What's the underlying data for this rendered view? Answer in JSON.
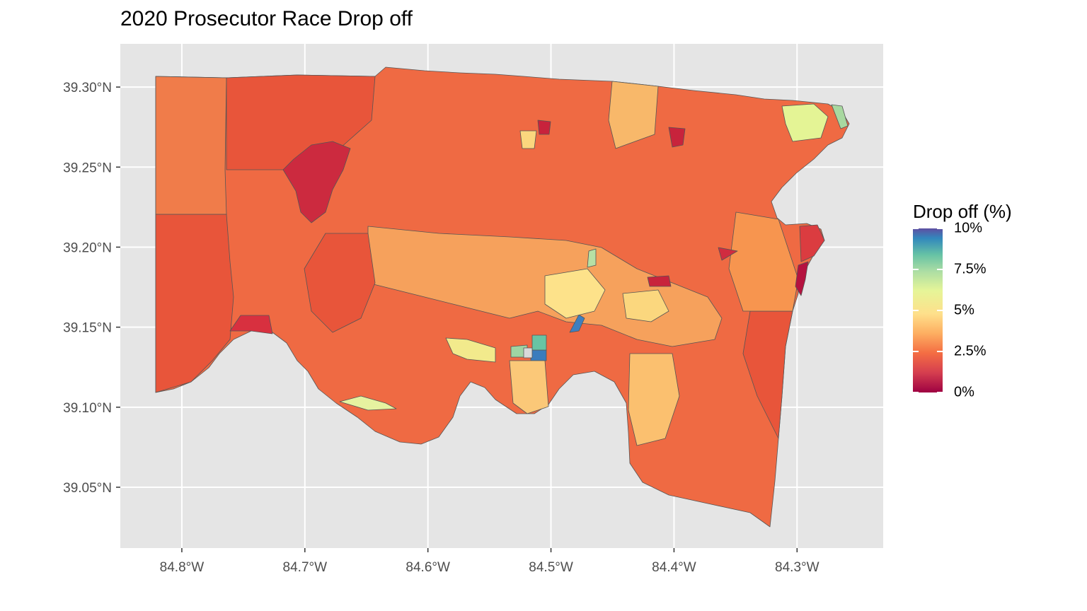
{
  "title": "2020 Prosecutor Race Drop off",
  "x_axis": {
    "ticks": [
      "84.8°W",
      "84.7°W",
      "84.6°W",
      "84.5°W",
      "84.4°W",
      "84.3°W"
    ],
    "values": [
      -84.8,
      -84.7,
      -84.6,
      -84.5,
      -84.4,
      -84.3
    ],
    "range": [
      -84.85,
      -84.23
    ]
  },
  "y_axis": {
    "ticks": [
      "39.30°N",
      "39.25°N",
      "39.20°N",
      "39.15°N",
      "39.10°N",
      "39.05°N"
    ],
    "values": [
      39.3,
      39.25,
      39.2,
      39.15,
      39.1,
      39.05
    ],
    "range": [
      39.012,
      39.327
    ]
  },
  "legend": {
    "title": "Drop off (%)",
    "labels": [
      "10%",
      "7.5%",
      "5%",
      "2.5%",
      "0%"
    ],
    "values": [
      10,
      7.5,
      5,
      2.5,
      0
    ],
    "palette": [
      "#9e0142",
      "#d53e4f",
      "#f46d43",
      "#fdae61",
      "#fee08b",
      "#e6f598",
      "#abdda4",
      "#66c2a5",
      "#3288bd",
      "#5e4fa2"
    ]
  },
  "colors": {
    "panel_background": "#e5e5e5",
    "grid": "#ffffff",
    "precinct_border": "#555555"
  }
}
